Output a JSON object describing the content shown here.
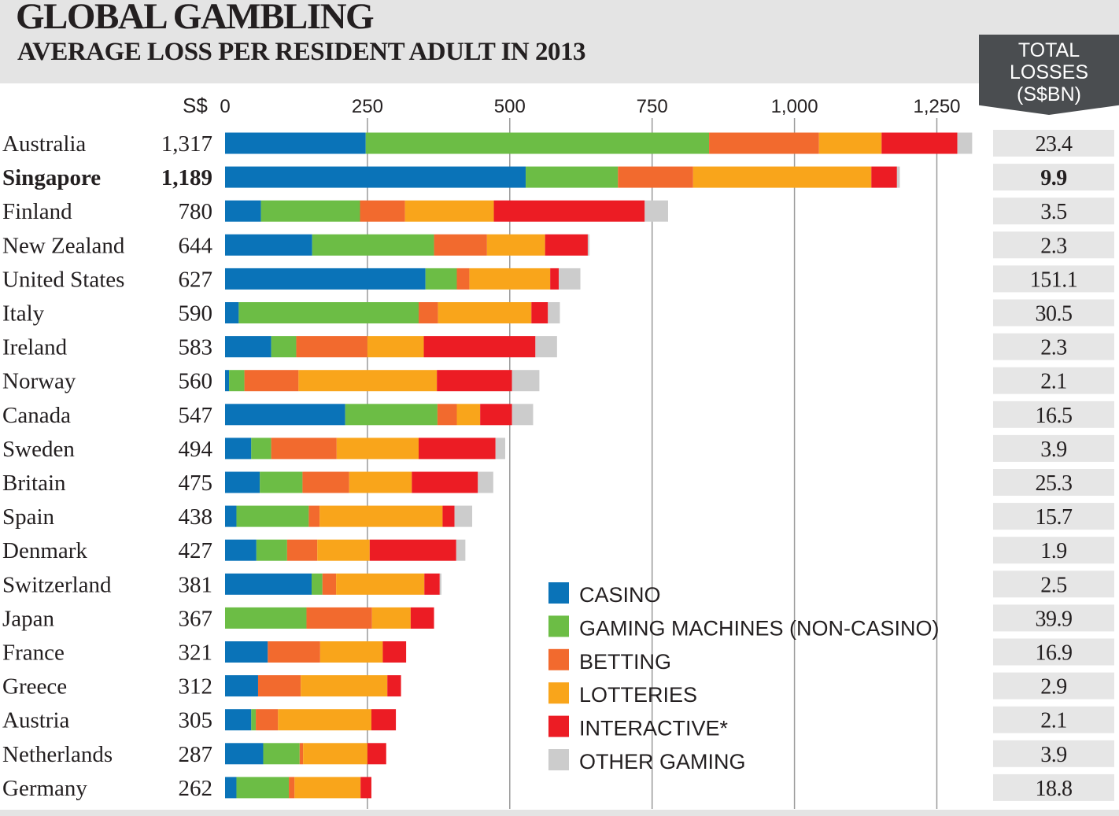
{
  "title": "GLOBAL GAMBLING",
  "subtitle": "AVERAGE  LOSS PER RESIDENT ADULT IN 2013",
  "total_header": [
    "TOTAL",
    "LOSSES",
    "(S$BN)"
  ],
  "colors": {
    "casino": "#0a73b8",
    "gaming_machines": "#6cbd45",
    "betting": "#f26a2e",
    "lotteries": "#f9a51b",
    "interactive": "#ec1c24",
    "other": "#cccccc",
    "title_band": "#e4e4e4",
    "total_header": "#4a4d50",
    "total_cell": "#e6e6e6",
    "gridline": "#9a9a9a"
  },
  "chart_data": {
    "type": "bar",
    "orientation": "horizontal",
    "stacked": true,
    "title": "GLOBAL GAMBLING",
    "subtitle": "AVERAGE  LOSS PER RESIDENT ADULT IN 2013",
    "unit_label": "S$",
    "xlim": [
      0,
      1300
    ],
    "xticks": [
      0,
      250,
      500,
      750,
      1000,
      1250
    ],
    "xtick_labels": [
      "0",
      "250",
      "500",
      "750",
      "1,000",
      "1,250"
    ],
    "grid": true,
    "legend_position": "bottom-right",
    "highlight": "Singapore",
    "categories": [
      "Australia",
      "Singapore",
      "Finland",
      "New Zealand",
      "United States",
      "Italy",
      "Ireland",
      "Norway",
      "Canada",
      "Sweden",
      "Britain",
      "Spain",
      "Denmark",
      "Switzerland",
      "Japan",
      "France",
      "Greece",
      "Austria",
      "Netherlands",
      "Germany"
    ],
    "average_loss_labels": [
      "1,317",
      "1,189",
      "780",
      "644",
      "627",
      "590",
      "583",
      "560",
      "547",
      "494",
      "475",
      "438",
      "427",
      "381",
      "367",
      "321",
      "312",
      "305",
      "287",
      "262"
    ],
    "total_losses_sgd_bn": [
      "23.4",
      "9.9",
      "3.5",
      "2.3",
      "151.1",
      "30.5",
      "2.3",
      "2.1",
      "16.5",
      "3.9",
      "25.3",
      "15.7",
      "1.9",
      "2.5",
      "39.9",
      "16.9",
      "2.9",
      "2.1",
      "3.9",
      "18.8"
    ],
    "series": [
      {
        "name": "CASINO",
        "color": "#0a73b8",
        "values": [
          247,
          528,
          63,
          153,
          352,
          24,
          81,
          7,
          211,
          46,
          61,
          20,
          55,
          152,
          0,
          75,
          58,
          46,
          67,
          20
        ]
      },
      {
        "name": "GAMING MACHINES (NON-CASINO)",
        "color": "#6cbd45",
        "values": [
          603,
          162,
          174,
          214,
          55,
          316,
          44,
          27,
          162,
          35,
          75,
          127,
          54,
          19,
          143,
          0,
          0,
          8,
          64,
          92
        ]
      },
      {
        "name": "BETTING",
        "color": "#f26a2e",
        "values": [
          193,
          132,
          79,
          93,
          22,
          34,
          125,
          95,
          34,
          115,
          82,
          19,
          53,
          24,
          115,
          92,
          75,
          39,
          6,
          10
        ]
      },
      {
        "name": "LOTTERIES",
        "color": "#f9a51b",
        "values": [
          110,
          313,
          156,
          102,
          142,
          164,
          99,
          243,
          41,
          144,
          110,
          216,
          92,
          155,
          68,
          110,
          152,
          164,
          113,
          116
        ]
      },
      {
        "name": "INTERACTIVE*",
        "color": "#ec1c24",
        "values": [
          133,
          45,
          265,
          75,
          15,
          29,
          196,
          132,
          56,
          135,
          116,
          21,
          152,
          27,
          41,
          41,
          24,
          43,
          33,
          19
        ]
      },
      {
        "name": "OTHER GAMING",
        "color": "#cccccc",
        "values": [
          26,
          5,
          41,
          3,
          38,
          21,
          38,
          48,
          37,
          17,
          27,
          31,
          16,
          3,
          0,
          0,
          0,
          0,
          0,
          0
        ]
      }
    ]
  }
}
